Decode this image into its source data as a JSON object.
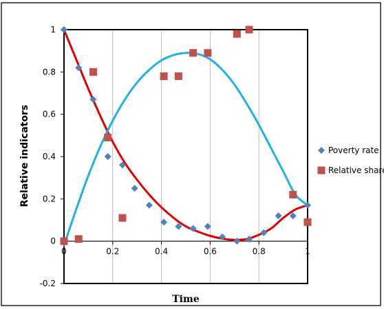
{
  "chart_data": {
    "type": "scatter",
    "xlabel": "Time",
    "ylabel": "Relative indicators",
    "xlim": [
      0,
      1
    ],
    "ylim": [
      -0.2,
      1
    ],
    "x_ticks": [
      "0",
      "0.2",
      "0.4",
      "0.6",
      "0.8",
      "1"
    ],
    "y_ticks": [
      "-0.2",
      "0",
      "0.2",
      "0.4",
      "0.6",
      "0.8",
      "1"
    ],
    "grid": "vertical",
    "legend_position": "right",
    "series": [
      {
        "name": "Poverty rate",
        "marker": "diamond",
        "color": "#4f81bd",
        "points": [
          [
            0,
            1
          ],
          [
            0.06,
            0.82
          ],
          [
            0.12,
            0.67
          ],
          [
            0.18,
            0.4
          ],
          [
            0.24,
            0.36
          ],
          [
            0.29,
            0.25
          ],
          [
            0.35,
            0.17
          ],
          [
            0.41,
            0.09
          ],
          [
            0.47,
            0.07
          ],
          [
            0.53,
            0.06
          ],
          [
            0.59,
            0.07
          ],
          [
            0.65,
            0.02
          ],
          [
            0.71,
            0.0
          ],
          [
            0.76,
            0.01
          ],
          [
            0.82,
            0.04
          ],
          [
            0.88,
            0.12
          ],
          [
            0.94,
            0.12
          ],
          [
            1.0,
            0.17
          ]
        ]
      },
      {
        "name": "Relative share",
        "marker": "square",
        "color": "#c0504d",
        "points": [
          [
            0,
            0
          ],
          [
            0.06,
            0.01
          ],
          [
            0.12,
            0.8
          ],
          [
            0.18,
            0.49
          ],
          [
            0.24,
            0.11
          ],
          [
            0.41,
            0.78
          ],
          [
            0.47,
            0.78
          ],
          [
            0.53,
            0.89
          ],
          [
            0.59,
            0.89
          ],
          [
            0.71,
            0.98
          ],
          [
            0.76,
            1.0
          ],
          [
            0.94,
            0.22
          ],
          [
            1.0,
            0.09
          ]
        ]
      }
    ],
    "fit_lines": [
      {
        "color": "#e00000",
        "points": [
          [
            0,
            1
          ],
          [
            0.05,
            0.86
          ],
          [
            0.1,
            0.72
          ],
          [
            0.15,
            0.59
          ],
          [
            0.2,
            0.47
          ],
          [
            0.25,
            0.37
          ],
          [
            0.3,
            0.29
          ],
          [
            0.35,
            0.22
          ],
          [
            0.4,
            0.16
          ],
          [
            0.45,
            0.11
          ],
          [
            0.5,
            0.07
          ],
          [
            0.55,
            0.045
          ],
          [
            0.6,
            0.025
          ],
          [
            0.65,
            0.012
          ],
          [
            0.7,
            0.006
          ],
          [
            0.75,
            0.01
          ],
          [
            0.8,
            0.03
          ],
          [
            0.85,
            0.06
          ],
          [
            0.9,
            0.11
          ],
          [
            0.95,
            0.15
          ],
          [
            1.0,
            0.17
          ]
        ]
      },
      {
        "color": "#1fb0e8",
        "points": [
          [
            0,
            -0.02
          ],
          [
            0.05,
            0.15
          ],
          [
            0.1,
            0.31
          ],
          [
            0.15,
            0.45
          ],
          [
            0.2,
            0.57
          ],
          [
            0.25,
            0.67
          ],
          [
            0.3,
            0.75
          ],
          [
            0.35,
            0.81
          ],
          [
            0.4,
            0.855
          ],
          [
            0.45,
            0.88
          ],
          [
            0.5,
            0.89
          ],
          [
            0.55,
            0.885
          ],
          [
            0.6,
            0.86
          ],
          [
            0.65,
            0.81
          ],
          [
            0.7,
            0.74
          ],
          [
            0.75,
            0.65
          ],
          [
            0.8,
            0.55
          ],
          [
            0.85,
            0.44
          ],
          [
            0.9,
            0.33
          ],
          [
            0.95,
            0.22
          ],
          [
            1.0,
            0.17
          ]
        ]
      }
    ]
  }
}
